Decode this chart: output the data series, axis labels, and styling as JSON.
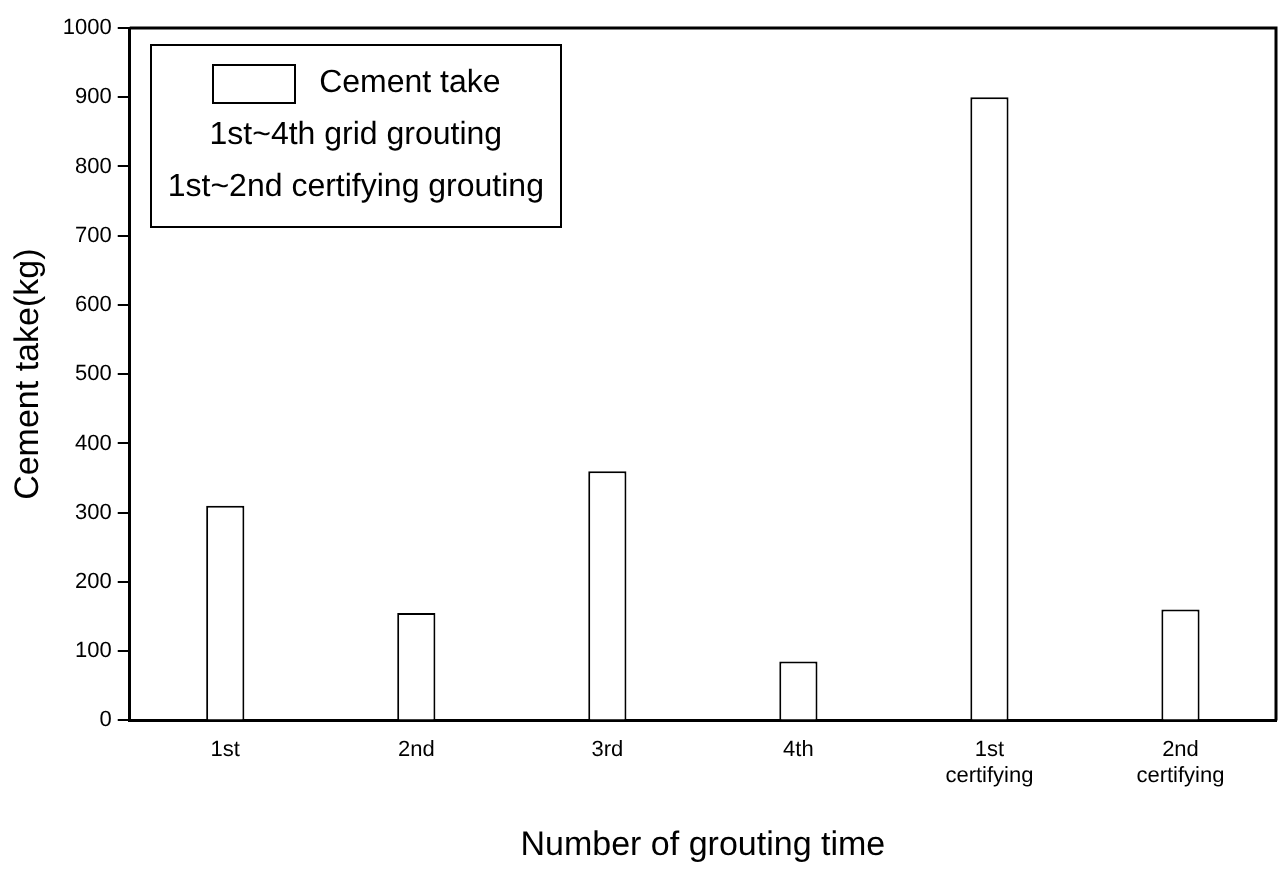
{
  "chart_data": {
    "type": "bar",
    "xlabel": "Number of grouting time",
    "ylabel": "Cement take(kg)",
    "categories": [
      "1st",
      "2nd",
      "3rd",
      "4th",
      "1st certifying",
      "2nd certifying"
    ],
    "series": [
      {
        "name": "Cement take",
        "color": "#ffffff",
        "values": [
          310,
          155,
          360,
          85,
          900,
          160
        ]
      }
    ],
    "ylim": [
      0,
      1000
    ],
    "yticks": [
      0,
      100,
      200,
      300,
      400,
      500,
      600,
      700,
      800,
      900,
      1000
    ],
    "legend": "top left",
    "grid": false,
    "annotations": [
      "1st~4th grid grouting",
      "1st~2nd certifying grouting"
    ]
  }
}
